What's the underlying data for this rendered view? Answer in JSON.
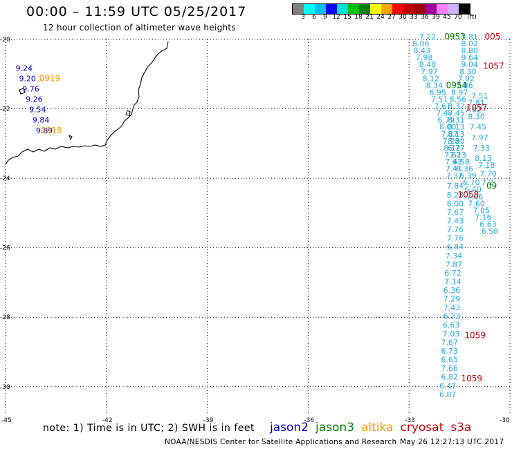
{
  "header": {
    "title": "00:00 – 11:59 UTC 05/25/2017",
    "subtitle": "12 hour collection of altimeter wave heights"
  },
  "legend": {
    "colors": [
      "#808080",
      "#00ffff",
      "#00bfff",
      "#0000ff",
      "#00e0e0",
      "#00c000",
      "#008000",
      "#ffff00",
      "#ffa500",
      "#ff0000",
      "#c00000",
      "#a00000",
      "#a000a0",
      "#ff80ff",
      "#d0b0ff",
      "#000000"
    ],
    "labels": [
      "3",
      "6",
      "9",
      "12",
      "15",
      "18",
      "21",
      "24",
      "27",
      "30",
      "33",
      "36",
      "39",
      "45",
      "70",
      "(ft)"
    ]
  },
  "axes": {
    "lat_labels": [
      "-20",
      "-22",
      "-24",
      "-26",
      "-28",
      "-30"
    ],
    "lon_labels": [
      "-45",
      "-42",
      "-39",
      "-36",
      "-33",
      "-30"
    ]
  },
  "colors": {
    "jason2": "#0000cc",
    "jason3": "#008000",
    "altika": "#ff9900",
    "cryosat": "#cc0000",
    "s3a": "#cc0000",
    "s3a_values": "#22aadd"
  },
  "track_values": [
    {
      "lat": -20.0,
      "lon": -32.7,
      "v": "7.22",
      "sat": "s3a"
    },
    {
      "lat": -20.2,
      "lon": -32.9,
      "v": "8.06",
      "sat": "s3a"
    },
    {
      "lat": -20.4,
      "lon": -32.87,
      "v": "8.43",
      "sat": "s3a"
    },
    {
      "lat": -20.6,
      "lon": -32.8,
      "v": "7.98",
      "sat": "s3a"
    },
    {
      "lat": -20.8,
      "lon": -32.7,
      "v": "8.48",
      "sat": "s3a"
    },
    {
      "lat": -21.0,
      "lon": -32.65,
      "v": "7.97",
      "sat": "s3a"
    },
    {
      "lat": -21.2,
      "lon": -32.6,
      "v": "8.12",
      "sat": "s3a"
    },
    {
      "lat": -21.4,
      "lon": -32.5,
      "v": "8.34",
      "sat": "s3a"
    },
    {
      "lat": -21.6,
      "lon": -32.4,
      "v": "6.95",
      "sat": "s3a"
    },
    {
      "lat": -21.8,
      "lon": -32.35,
      "v": "7.51",
      "sat": "s3a"
    },
    {
      "lat": -22.0,
      "lon": -32.25,
      "v": "7.61",
      "sat": "s3a"
    },
    {
      "lat": -22.2,
      "lon": -32.2,
      "v": "7.47",
      "sat": "s3a"
    },
    {
      "lat": -22.4,
      "lon": -32.15,
      "v": "6.79",
      "sat": "s3a"
    },
    {
      "lat": -22.6,
      "lon": -32.1,
      "v": "8.00",
      "sat": "s3a"
    },
    {
      "lat": -22.8,
      "lon": -32.05,
      "v": "7.87",
      "sat": "s3a"
    },
    {
      "lat": -23.0,
      "lon": -32.0,
      "v": "7.28",
      "sat": "s3a"
    },
    {
      "lat": -23.2,
      "lon": -31.97,
      "v": "8.12",
      "sat": "s3a"
    },
    {
      "lat": -23.4,
      "lon": -31.95,
      "v": "7.62",
      "sat": "s3a"
    },
    {
      "lat": -23.6,
      "lon": -31.93,
      "v": "7.43",
      "sat": "s3a"
    },
    {
      "lat": -23.8,
      "lon": -31.92,
      "v": "7.41",
      "sat": "s3a"
    },
    {
      "lat": -24.0,
      "lon": -31.9,
      "v": "7.32",
      "sat": "s3a"
    },
    {
      "lat": -24.3,
      "lon": -31.88,
      "v": "7.84",
      "sat": "s3a"
    },
    {
      "lat": -24.55,
      "lon": -31.88,
      "v": "8.28",
      "sat": "s3a"
    },
    {
      "lat": -24.8,
      "lon": -31.88,
      "v": "8.00",
      "sat": "s3a"
    },
    {
      "lat": -25.05,
      "lon": -31.88,
      "v": "7.67",
      "sat": "s3a"
    },
    {
      "lat": -25.3,
      "lon": -31.88,
      "v": "7.43",
      "sat": "s3a"
    },
    {
      "lat": -25.55,
      "lon": -31.88,
      "v": "7.76",
      "sat": "s3a"
    },
    {
      "lat": -25.8,
      "lon": -31.88,
      "v": "7.76",
      "sat": "s3a"
    },
    {
      "lat": -26.05,
      "lon": -31.88,
      "v": "6.84",
      "sat": "s3a"
    },
    {
      "lat": -26.3,
      "lon": -31.92,
      "v": "7.34",
      "sat": "s3a"
    },
    {
      "lat": -26.55,
      "lon": -31.92,
      "v": "7.87",
      "sat": "s3a"
    },
    {
      "lat": -26.8,
      "lon": -31.95,
      "v": "6.72",
      "sat": "s3a"
    },
    {
      "lat": -27.05,
      "lon": -31.95,
      "v": "7.14",
      "sat": "s3a"
    },
    {
      "lat": -27.3,
      "lon": -31.98,
      "v": "6.36",
      "sat": "s3a"
    },
    {
      "lat": -27.55,
      "lon": -31.98,
      "v": "7.29",
      "sat": "s3a"
    },
    {
      "lat": -27.8,
      "lon": -31.98,
      "v": "7.43",
      "sat": "s3a"
    },
    {
      "lat": -28.05,
      "lon": -31.98,
      "v": "6.23",
      "sat": "s3a"
    },
    {
      "lat": -28.3,
      "lon": -32.0,
      "v": "6.63",
      "sat": "s3a"
    },
    {
      "lat": -28.55,
      "lon": -32.0,
      "v": "7.03",
      "sat": "s3a"
    },
    {
      "lat": -28.8,
      "lon": -32.05,
      "v": "7.67",
      "sat": "s3a"
    },
    {
      "lat": -29.05,
      "lon": -32.05,
      "v": "6.73",
      "sat": "s3a"
    },
    {
      "lat": -29.3,
      "lon": -32.05,
      "v": "6.65",
      "sat": "s3a"
    },
    {
      "lat": -29.55,
      "lon": -32.05,
      "v": "7.66",
      "sat": "s3a"
    },
    {
      "lat": -29.8,
      "lon": -32.05,
      "v": "6.82",
      "sat": "s3a"
    },
    {
      "lat": -30.05,
      "lon": -32.1,
      "v": "6.47",
      "sat": "s3a"
    },
    {
      "lat": -30.3,
      "lon": -32.1,
      "v": "6.87",
      "sat": "s3a"
    },
    {
      "lat": -20.0,
      "lon": -31.45,
      "v": "7.81",
      "sat": "s3a"
    },
    {
      "lat": -20.2,
      "lon": -31.45,
      "v": "8.02",
      "sat": "s3a"
    },
    {
      "lat": -20.4,
      "lon": -31.45,
      "v": "8.80",
      "sat": "s3a"
    },
    {
      "lat": -20.6,
      "lon": -31.45,
      "v": "9.64",
      "sat": "s3a"
    },
    {
      "lat": -20.8,
      "lon": -31.45,
      "v": "9.04",
      "sat": "s3a"
    },
    {
      "lat": -21.0,
      "lon": -31.5,
      "v": "8.30",
      "sat": "s3a"
    },
    {
      "lat": -21.2,
      "lon": -31.55,
      "v": "7.92",
      "sat": "s3a"
    },
    {
      "lat": -21.4,
      "lon": -31.6,
      "v": "7.86",
      "sat": "s3a"
    },
    {
      "lat": -21.6,
      "lon": -31.75,
      "v": "8.97",
      "sat": "s3a"
    },
    {
      "lat": -21.8,
      "lon": -31.8,
      "v": "8.56",
      "sat": "s3a"
    },
    {
      "lat": -22.0,
      "lon": -31.85,
      "v": "8.32",
      "sat": "s3a"
    },
    {
      "lat": -22.2,
      "lon": -31.85,
      "v": "8.45",
      "sat": "s3a"
    },
    {
      "lat": -22.4,
      "lon": -31.85,
      "v": "8.31",
      "sat": "s3a"
    },
    {
      "lat": -22.6,
      "lon": -31.85,
      "v": "8.13",
      "sat": "s3a"
    },
    {
      "lat": -22.8,
      "lon": -31.85,
      "v": "8.13",
      "sat": "s3a"
    },
    {
      "lat": -23.0,
      "lon": -31.85,
      "v": "8.20",
      "sat": "s3a"
    },
    {
      "lat": -23.2,
      "lon": -31.85,
      "v": "6.77",
      "sat": "s3a"
    },
    {
      "lat": -23.4,
      "lon": -31.8,
      "v": "7.13",
      "sat": "s3a"
    },
    {
      "lat": -23.6,
      "lon": -31.7,
      "v": "6.58",
      "sat": "s3a"
    },
    {
      "lat": -23.8,
      "lon": -31.6,
      "v": "6.36",
      "sat": "s3a"
    },
    {
      "lat": -24.0,
      "lon": -31.5,
      "v": "6.39",
      "sat": "s3a"
    },
    {
      "lat": -24.2,
      "lon": -31.4,
      "v": "6.70",
      "sat": "s3a"
    },
    {
      "lat": -24.4,
      "lon": -31.35,
      "v": "6.40",
      "sat": "s3a"
    },
    {
      "lat": -24.6,
      "lon": -31.3,
      "v": "7.06",
      "sat": "s3a"
    },
    {
      "lat": -24.8,
      "lon": -31.25,
      "v": "7.60",
      "sat": "s3a"
    },
    {
      "lat": -25.0,
      "lon": -31.1,
      "v": "7.05",
      "sat": "s3a"
    },
    {
      "lat": -25.2,
      "lon": -31.05,
      "v": "7.16",
      "sat": "s3a"
    },
    {
      "lat": -25.4,
      "lon": -30.9,
      "v": "6.63",
      "sat": "s3a"
    },
    {
      "lat": -25.6,
      "lon": -30.85,
      "v": "6.58",
      "sat": "s3a"
    },
    {
      "lat": -21.7,
      "lon": -31.15,
      "v": "7.51",
      "sat": "s3a"
    },
    {
      "lat": -21.9,
      "lon": -31.25,
      "v": "7.81",
      "sat": "s3a"
    },
    {
      "lat": -22.1,
      "lon": -31.35,
      "v": "7.62",
      "sat": "s3a"
    },
    {
      "lat": -22.3,
      "lon": -31.25,
      "v": "8.30",
      "sat": "s3a"
    },
    {
      "lat": -22.6,
      "lon": -31.2,
      "v": "7.45",
      "sat": "s3a"
    },
    {
      "lat": -22.9,
      "lon": -31.15,
      "v": "7.97",
      "sat": "s3a"
    },
    {
      "lat": -23.2,
      "lon": -31.1,
      "v": "7.33",
      "sat": "s3a"
    },
    {
      "lat": -23.5,
      "lon": -31.05,
      "v": "8.13",
      "sat": "s3a"
    },
    {
      "lat": -23.7,
      "lon": -30.95,
      "v": "7.18",
      "sat": "s3a"
    },
    {
      "lat": -23.95,
      "lon": -30.9,
      "v": "7.70",
      "sat": "s3a"
    },
    {
      "lat": -24.2,
      "lon": -30.85,
      "v": "7.2",
      "sat": "s3a"
    },
    {
      "lat": -20.9,
      "lon": -44.7,
      "v": "9.24",
      "sat": "jason2"
    },
    {
      "lat": -21.2,
      "lon": -44.6,
      "v": "9.20",
      "sat": "jason2"
    },
    {
      "lat": -21.5,
      "lon": -44.5,
      "v": "9.76",
      "sat": "jason2"
    },
    {
      "lat": -21.8,
      "lon": -44.4,
      "v": "9.26",
      "sat": "jason2"
    },
    {
      "lat": -22.1,
      "lon": -44.3,
      "v": "9.54",
      "sat": "jason2"
    },
    {
      "lat": -22.4,
      "lon": -44.2,
      "v": "9.84",
      "sat": "jason2"
    },
    {
      "lat": -22.7,
      "lon": -44.1,
      "v": "9.89",
      "sat": "jason2"
    }
  ],
  "time_labels": [
    {
      "lat": -20.0,
      "lon": -31.95,
      "t": "0953",
      "sat": "jason3"
    },
    {
      "lat": -21.4,
      "lon": -31.9,
      "t": "0954",
      "sat": "jason3"
    },
    {
      "lat": -24.3,
      "lon": -30.7,
      "t": "09",
      "sat": "jason3"
    },
    {
      "lat": -20.0,
      "lon": -30.75,
      "t": "005",
      "sat": "cryosat"
    },
    {
      "lat": -20.85,
      "lon": -30.8,
      "t": "1057",
      "sat": "cryosat"
    },
    {
      "lat": -22.05,
      "lon": -31.3,
      "t": "1057",
      "sat": "cryosat"
    },
    {
      "lat": -24.55,
      "lon": -31.55,
      "t": "1058",
      "sat": "cryosat"
    },
    {
      "lat": -28.6,
      "lon": -31.35,
      "t": "1059",
      "sat": "cryosat"
    },
    {
      "lat": -29.85,
      "lon": -31.45,
      "t": "1059",
      "sat": "cryosat"
    },
    {
      "lat": -21.2,
      "lon": -44.0,
      "t": "0919",
      "sat": "altika"
    },
    {
      "lat": -22.7,
      "lon": -43.95,
      "t": "0918",
      "sat": "altika"
    }
  ],
  "footer": {
    "note": "note: 1) Time is in UTC; 2) SWH is in feet",
    "satellites": [
      "jason2",
      "jason3",
      "altika",
      "cryosat",
      "s3a"
    ],
    "credit": "NOAA/NESDIS Center for Satellite Applications and Research",
    "timestamp": "May 26 12:27:13 UTC 2017"
  }
}
